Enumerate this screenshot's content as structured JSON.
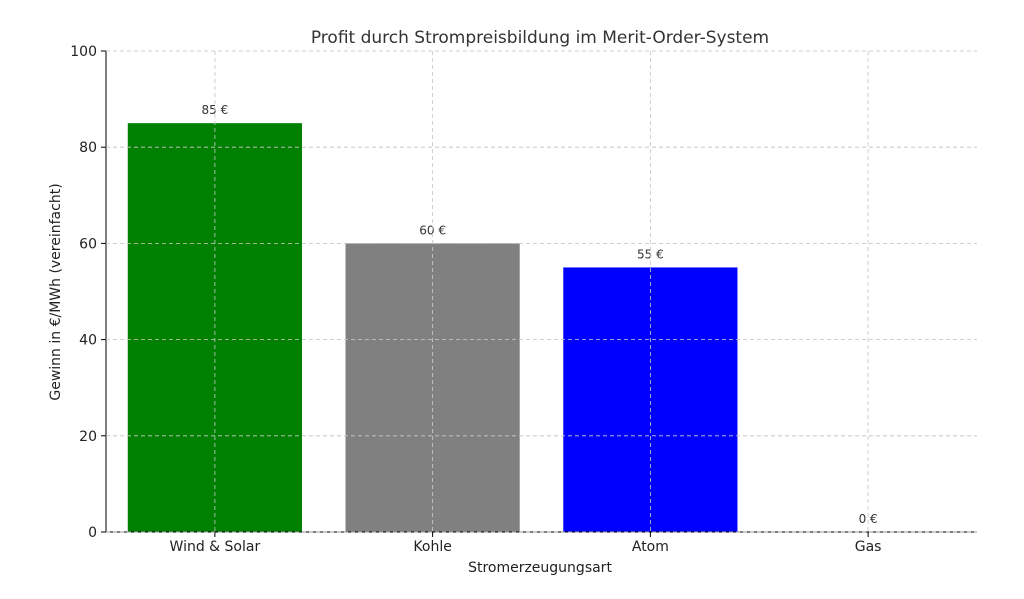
{
  "chart_data": {
    "type": "bar",
    "title": "Profit durch Strompreisbildung im Merit-Order-System",
    "xlabel": "Stromerzeugungsart",
    "ylabel": "Gewinn in €/MWh (vereinfacht)",
    "categories": [
      "Wind & Solar",
      "Kohle",
      "Atom",
      "Gas"
    ],
    "values": [
      85,
      60,
      55,
      0
    ],
    "data_labels": [
      "85 €",
      "60 €",
      "55 €",
      "0 €"
    ],
    "colors": [
      "#008000",
      "#808080",
      "#0000ff",
      "#ff8c00"
    ],
    "ylim": [
      0,
      100
    ],
    "yticks": [
      0,
      20,
      40,
      60,
      80,
      100
    ],
    "grid": true,
    "legend": "none"
  }
}
